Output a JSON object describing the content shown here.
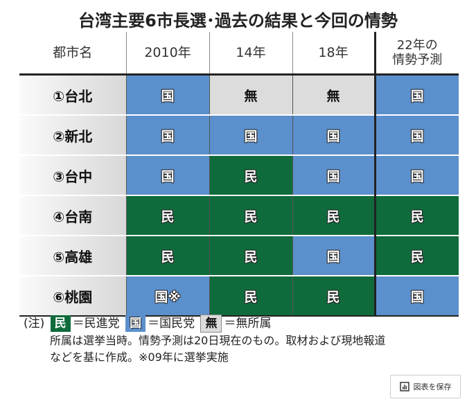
{
  "title": "台湾主要6市長選･過去の結果と今回の情勢",
  "headers": [
    "都市名",
    "2010年",
    "14年",
    "18年",
    "22年の",
    "情勢予測"
  ],
  "rows": [
    {
      "city": "①台北",
      "r2010": "国",
      "r14": "無",
      "r18": "無",
      "r22": "国"
    },
    {
      "city": "②新北",
      "r2010": "国",
      "r14": "国",
      "r18": "国",
      "r22": "国"
    },
    {
      "city": "③台中",
      "r2010": "国",
      "r14": "民",
      "r18": "国",
      "r22": "国"
    },
    {
      "city": "④台南",
      "r2010": "民",
      "r14": "民",
      "r18": "民",
      "r22": "民"
    },
    {
      "city": "⑤高雄",
      "r2010": "民",
      "r14": "民",
      "r18": "国",
      "r22": "民"
    },
    {
      "city": "⑥桃園",
      "r2010": "国※",
      "r14": "民",
      "r18": "民",
      "r22": "国"
    }
  ],
  "legend": {
    "prefix": "(注)",
    "dpp_chip": "民",
    "dpp_label": "＝民進党",
    "kmt_chip": "国",
    "kmt_label": "＝国民党",
    "ind_chip": "無",
    "ind_label": "＝無所属"
  },
  "note_line1": "所属は選挙当時。情勢予測は20日現在のもの。取材および現地報道",
  "note_line2": "などを基に作成。※09年に選挙実施",
  "save_button": "図表を保存",
  "colors": {
    "民": "#0f6b3b",
    "国": "#5b90cc",
    "無": "#dcdcdc"
  }
}
